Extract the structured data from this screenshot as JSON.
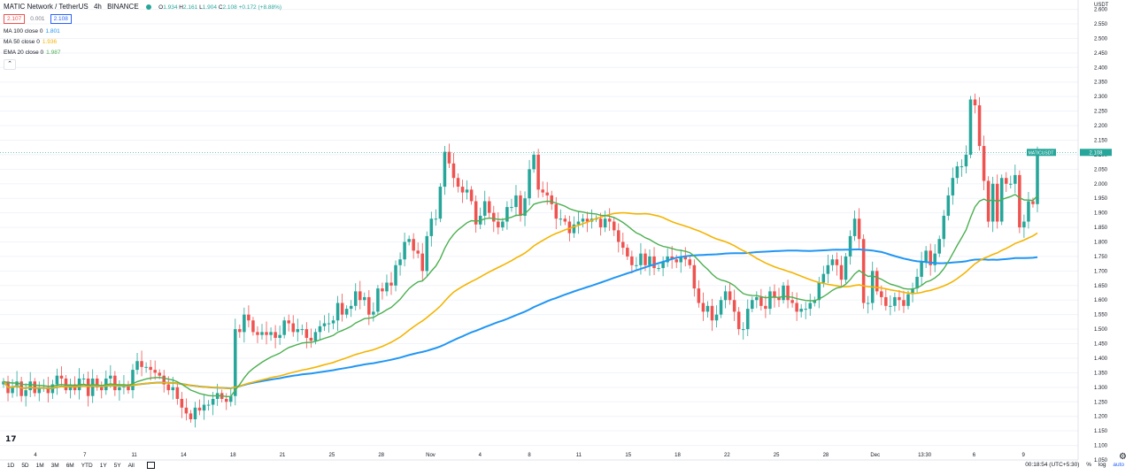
{
  "header": {
    "symbol": "MATIC Network / TetherUS",
    "interval": "4h",
    "exchange": "BINANCE",
    "open_label": "O",
    "open": "1.934",
    "high_label": "H",
    "high": "2.161",
    "low_label": "L",
    "low": "1.904",
    "close_label": "C",
    "close": "2.108",
    "change": "+0.172 (+8.88%)"
  },
  "price_row": {
    "bid": "2.107",
    "spread": "0.001",
    "ask": "2.108"
  },
  "indicators": [
    {
      "label": "MA 100 close 0",
      "value": "1.801",
      "color": "#2196f3"
    },
    {
      "label": "MA 50 close 0",
      "value": "1.936",
      "color": "#f4b400"
    },
    {
      "label": "EMA 20 close 0",
      "value": "1.987",
      "color": "#4caf50"
    }
  ],
  "collapse_icon": "chevron-up-icon",
  "logo_text": "17",
  "current_tag": {
    "symbol": "MATICUSDT",
    "price": "2.108"
  },
  "bottom_bar": {
    "ranges": [
      "1D",
      "5D",
      "1M",
      "3M",
      "6M",
      "YTD",
      "1Y",
      "5Y",
      "All"
    ],
    "time": "00:18:54 (UTC+5:30)",
    "percent": "%",
    "log": "log",
    "auto": "auto"
  },
  "colors": {
    "up": "#26a69a",
    "down": "#ef5350",
    "ma100": "#2196f3",
    "ma50": "#f4b400",
    "ema20": "#4caf50"
  },
  "chart_data": {
    "type": "candlestick",
    "title": "MATIC Network / TetherUS",
    "y_unit": "USDT",
    "ylim": [
      1.05,
      2.62
    ],
    "y_ticks": [
      "1.050",
      "1.100",
      "1.150",
      "1.200",
      "1.250",
      "1.300",
      "1.350",
      "1.400",
      "1.450",
      "1.500",
      "1.550",
      "1.600",
      "1.650",
      "1.700",
      "1.750",
      "1.800",
      "1.850",
      "1.900",
      "1.950",
      "2.000",
      "2.050",
      "2.100",
      "2.150",
      "2.200",
      "2.250",
      "2.300",
      "2.350",
      "2.400",
      "2.450",
      "2.500",
      "2.550",
      "2.600"
    ],
    "x_ticks": [
      "4",
      "7",
      "11",
      "14",
      "18",
      "21",
      "25",
      "28",
      "Nov",
      "4",
      "8",
      "11",
      "15",
      "18",
      "22",
      "25",
      "28",
      "Dec",
      "13:30",
      "6",
      "9"
    ],
    "grid": true,
    "closes": [
      1.32,
      1.28,
      1.3,
      1.32,
      1.27,
      1.29,
      1.32,
      1.28,
      1.3,
      1.3,
      1.28,
      1.31,
      1.34,
      1.33,
      1.29,
      1.31,
      1.29,
      1.33,
      1.33,
      1.27,
      1.33,
      1.3,
      1.29,
      1.33,
      1.34,
      1.29,
      1.3,
      1.31,
      1.29,
      1.36,
      1.39,
      1.37,
      1.37,
      1.36,
      1.35,
      1.34,
      1.31,
      1.29,
      1.3,
      1.26,
      1.23,
      1.21,
      1.19,
      1.23,
      1.22,
      1.24,
      1.24,
      1.26,
      1.28,
      1.26,
      1.25,
      1.27,
      1.5,
      1.49,
      1.55,
      1.53,
      1.49,
      1.48,
      1.49,
      1.48,
      1.49,
      1.47,
      1.48,
      1.53,
      1.52,
      1.49,
      1.5,
      1.5,
      1.47,
      1.46,
      1.49,
      1.51,
      1.52,
      1.52,
      1.53,
      1.59,
      1.55,
      1.57,
      1.58,
      1.63,
      1.6,
      1.61,
      1.55,
      1.56,
      1.64,
      1.63,
      1.66,
      1.65,
      1.72,
      1.74,
      1.8,
      1.81,
      1.77,
      1.76,
      1.7,
      1.82,
      1.88,
      1.88,
      1.99,
      2.11,
      2.07,
      2.02,
      1.99,
      1.97,
      1.98,
      1.94,
      1.86,
      1.89,
      1.94,
      1.9,
      1.87,
      1.85,
      1.87,
      1.92,
      1.92,
      1.96,
      1.89,
      1.95,
      2.05,
      2.1,
      1.98,
      1.97,
      1.96,
      1.93,
      1.88,
      1.88,
      1.87,
      1.83,
      1.86,
      1.87,
      1.88,
      1.87,
      1.88,
      1.88,
      1.85,
      1.88,
      1.87,
      1.84,
      1.8,
      1.78,
      1.75,
      1.72,
      1.72,
      1.76,
      1.72,
      1.75,
      1.71,
      1.71,
      1.73,
      1.75,
      1.74,
      1.73,
      1.75,
      1.74,
      1.72,
      1.64,
      1.59,
      1.56,
      1.58,
      1.53,
      1.55,
      1.6,
      1.63,
      1.6,
      1.56,
      1.5,
      1.5,
      1.57,
      1.6,
      1.61,
      1.58,
      1.57,
      1.63,
      1.61,
      1.6,
      1.65,
      1.6,
      1.59,
      1.56,
      1.57,
      1.57,
      1.59,
      1.6,
      1.66,
      1.69,
      1.72,
      1.74,
      1.72,
      1.67,
      1.75,
      1.82,
      1.88,
      1.81,
      1.59,
      1.59,
      1.7,
      1.63,
      1.61,
      1.58,
      1.58,
      1.61,
      1.6,
      1.58,
      1.62,
      1.64,
      1.68,
      1.73,
      1.77,
      1.72,
      1.76,
      1.81,
      1.89,
      1.96,
      2.02,
      2.06,
      2.06,
      2.1,
      2.29,
      2.27,
      2.13,
      2.01,
      1.87,
      2,
      1.87,
      2.02,
      2.0,
      2.0,
      2.03,
      1.85,
      1.87,
      1.94,
      1.93,
      2.108
    ]
  }
}
